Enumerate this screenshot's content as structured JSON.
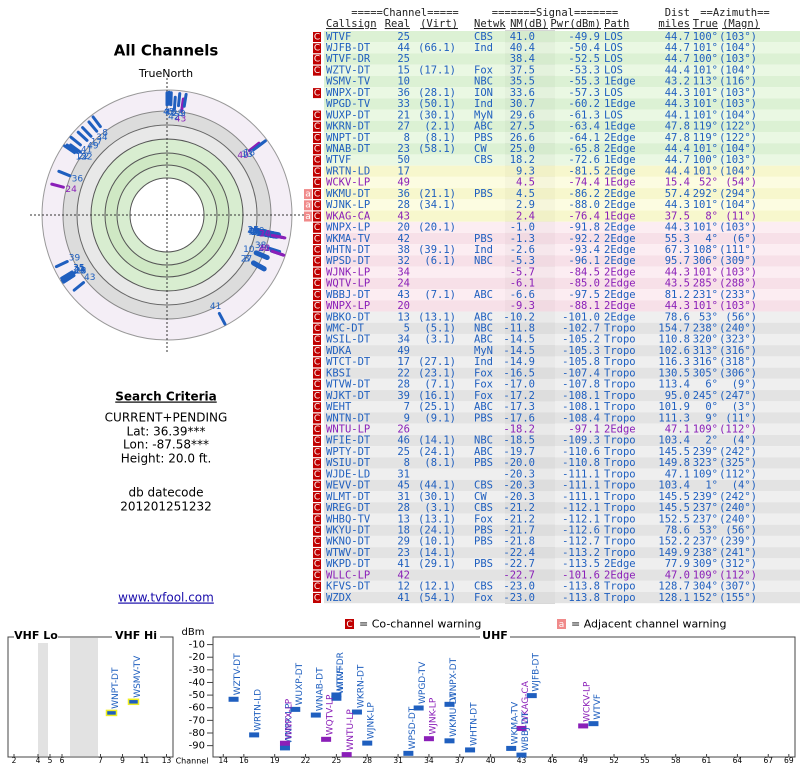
{
  "left": {
    "title": "All Channels",
    "north": "TrueNorth",
    "criteria_title": "Search Criteria",
    "criteria": [
      "CURRENT+PENDING",
      "Lat: 36.39***",
      "Lon: -87.58***",
      "Height: 20.0 ft."
    ],
    "datecode_label": "db datecode",
    "datecode": "201201251232",
    "link": "www.tvfool.com"
  },
  "table": {
    "groups": [
      "=====Channel=====",
      "=======Signal=======",
      "Dist",
      "==Azimuth=="
    ],
    "columns": [
      "Callsign",
      "Real",
      "(Virt)",
      "Netwk",
      "NM(dB)",
      "Pwr(dBm)",
      "Path",
      "miles",
      "True",
      "(Magn)"
    ],
    "rows": [
      {
        "warn": [
          "C"
        ],
        "cells": [
          "WTVF",
          25,
          null,
          "CBS",
          "41.0",
          "-49.9",
          "LOS",
          "44.7",
          "100°",
          "(103°)"
        ],
        "color": "#1f5fbf"
      },
      {
        "warn": [
          "C"
        ],
        "cells": [
          "WJFB-DT",
          44,
          "(66.1)",
          "Ind",
          "40.4",
          "-50.4",
          "LOS",
          "44.7",
          "101°",
          "(104°)"
        ],
        "color": "#1f5fbf"
      },
      {
        "warn": [
          "C"
        ],
        "cells": [
          "WTVF-DR",
          25,
          null,
          null,
          "38.4",
          "-52.5",
          "LOS",
          "44.7",
          "100°",
          "(103°)"
        ],
        "color": "#1f5fbf"
      },
      {
        "warn": [
          "C"
        ],
        "cells": [
          "WZTV-DT",
          15,
          "(17.1)",
          "Fox",
          "37.5",
          "-53.3",
          "LOS",
          "44.4",
          "101°",
          "(104°)"
        ],
        "color": "#1f5fbf"
      },
      {
        "warn": [],
        "cells": [
          "WSMV-TV",
          10,
          null,
          "NBC",
          "35.5",
          "-55.3",
          "1Edge",
          "43.2",
          "113°",
          "(116°)"
        ],
        "color": "#1f5fbf"
      },
      {
        "warn": [
          "C"
        ],
        "cells": [
          "WNPX-DT",
          36,
          "(28.1)",
          "ION",
          "33.6",
          "-57.3",
          "LOS",
          "44.3",
          "101°",
          "(103°)"
        ],
        "color": "#1f5fbf"
      },
      {
        "warn": [],
        "cells": [
          "WPGD-TV",
          33,
          "(50.1)",
          "Ind",
          "30.7",
          "-60.2",
          "1Edge",
          "44.3",
          "101°",
          "(103°)"
        ],
        "color": "#1f5fbf"
      },
      {
        "warn": [
          "C"
        ],
        "cells": [
          "WUXP-DT",
          21,
          "(30.1)",
          "MyN",
          "29.6",
          "-61.3",
          "LOS",
          "44.1",
          "101°",
          "(104°)"
        ],
        "color": "#1f5fbf"
      },
      {
        "warn": [
          "C"
        ],
        "cells": [
          "WKRN-DT",
          27,
          "(2.1)",
          "ABC",
          "27.5",
          "-63.4",
          "1Edge",
          "47.8",
          "119°",
          "(122°)"
        ],
        "color": "#1f5fbf"
      },
      {
        "warn": [
          "C"
        ],
        "cells": [
          "WNPT-DT",
          8,
          "(8.1)",
          "PBS",
          "26.6",
          "-64.1",
          "2Edge",
          "47.8",
          "119°",
          "(122°)"
        ],
        "color": "#1f5fbf"
      },
      {
        "warn": [
          "C"
        ],
        "cells": [
          "WNAB-DT",
          23,
          "(58.1)",
          "CW",
          "25.0",
          "-65.8",
          "2Edge",
          "44.4",
          "101°",
          "(104°)"
        ],
        "color": "#1f5fbf"
      },
      {
        "warn": [
          "C"
        ],
        "cells": [
          "WTVF",
          50,
          null,
          "CBS",
          "18.2",
          "-72.6",
          "1Edge",
          "44.7",
          "100°",
          "(103°)"
        ],
        "color": "#1f5fbf"
      },
      {
        "warn": [
          "C"
        ],
        "cells": [
          "WRTN-LD",
          17,
          null,
          null,
          "9.3",
          "-81.5",
          "2Edge",
          "44.4",
          "101°",
          "(104°)"
        ],
        "color": "#1f5fbf"
      },
      {
        "warn": [
          "C"
        ],
        "cells": [
          "WCKV-LP",
          49,
          null,
          null,
          "4.5",
          "-74.4",
          "1Edge",
          "15.4",
          "52°",
          "(54°)"
        ],
        "color": "#8a1fb8"
      },
      {
        "warn": [
          "a",
          "C"
        ],
        "cells": [
          "WKMU-DT",
          36,
          "(21.1)",
          "PBS",
          "4.5",
          "-86.2",
          "2Edge",
          "57.4",
          "292°",
          "(294°)"
        ],
        "color": "#1f5fbf"
      },
      {
        "warn": [
          "a",
          "C"
        ],
        "cells": [
          "WJNK-LP",
          28,
          "(34.1)",
          null,
          "2.9",
          "-88.0",
          "2Edge",
          "44.3",
          "101°",
          "(104°)"
        ],
        "color": "#1f5fbf"
      },
      {
        "warn": [
          "a",
          "C"
        ],
        "cells": [
          "WKAG-CA",
          43,
          null,
          null,
          "2.4",
          "-76.4",
          "1Edge",
          "37.5",
          "8°",
          "(11°)"
        ],
        "color": "#8a1fb8"
      },
      {
        "warn": [
          "C"
        ],
        "cells": [
          "WNPX-LP",
          20,
          "(20.1)",
          null,
          "-1.0",
          "-91.8",
          "2Edge",
          "44.3",
          "101°",
          "(103°)"
        ],
        "color": "#1f5fbf"
      },
      {
        "warn": [
          "C"
        ],
        "cells": [
          "WKMA-TV",
          42,
          null,
          "PBS",
          "-1.3",
          "-92.2",
          "2Edge",
          "55.3",
          "4°",
          "(6°)"
        ],
        "color": "#1f5fbf"
      },
      {
        "warn": [
          "C"
        ],
        "cells": [
          "WHTN-DT",
          38,
          "(39.1)",
          "Ind",
          "-2.6",
          "-93.4",
          "2Edge",
          "67.3",
          "108°",
          "(111°)"
        ],
        "color": "#1f5fbf"
      },
      {
        "warn": [
          "C"
        ],
        "cells": [
          "WPSD-DT",
          32,
          "(6.1)",
          "NBC",
          "-5.3",
          "-96.1",
          "2Edge",
          "95.7",
          "306°",
          "(309°)"
        ],
        "color": "#1f5fbf"
      },
      {
        "warn": [
          "C"
        ],
        "cells": [
          "WJNK-LP",
          34,
          null,
          null,
          "-5.7",
          "-84.5",
          "2Edge",
          "44.3",
          "101°",
          "(103°)"
        ],
        "color": "#8a1fb8"
      },
      {
        "warn": [
          "C"
        ],
        "cells": [
          "WQTV-LP",
          24,
          null,
          null,
          "-6.1",
          "-85.0",
          "2Edge",
          "43.5",
          "285°",
          "(288°)"
        ],
        "color": "#8a1fb8"
      },
      {
        "warn": [
          "C"
        ],
        "cells": [
          "WBBJ-DT",
          43,
          "(7.1)",
          "ABC",
          "-6.6",
          "-97.5",
          "2Edge",
          "81.2",
          "231°",
          "(233°)"
        ],
        "color": "#1f5fbf"
      },
      {
        "warn": [
          "C"
        ],
        "cells": [
          "WNPX-LP",
          20,
          null,
          null,
          "-9.3",
          "-88.1",
          "2Edge",
          "44.3",
          "101°",
          "(103°)"
        ],
        "color": "#8a1fb8"
      },
      {
        "warn": [
          "C"
        ],
        "cells": [
          "WBKO-DT",
          13,
          "(13.1)",
          "ABC",
          "-10.2",
          "-101.0",
          "2Edge",
          "78.6",
          "53°",
          "(56°)"
        ],
        "color": "#1f5fbf"
      },
      {
        "warn": [
          "C"
        ],
        "cells": [
          "WMC-DT",
          5,
          "(5.1)",
          "NBC",
          "-11.8",
          "-102.7",
          "Tropo",
          "154.7",
          "238°",
          "(240°)"
        ],
        "color": "#1f5fbf"
      },
      {
        "warn": [
          "C"
        ],
        "cells": [
          "WSIL-DT",
          34,
          "(3.1)",
          "ABC",
          "-14.5",
          "-105.2",
          "Tropo",
          "110.8",
          "320°",
          "(323°)"
        ],
        "color": "#1f5fbf"
      },
      {
        "warn": [
          "C"
        ],
        "cells": [
          "WDKA",
          49,
          null,
          "MyN",
          "-14.5",
          "-105.3",
          "Tropo",
          "102.6",
          "313°",
          "(316°)"
        ],
        "color": "#1f5fbf"
      },
      {
        "warn": [
          "C"
        ],
        "cells": [
          "WTCT-DT",
          17,
          "(27.1)",
          "Ind",
          "-14.9",
          "-105.8",
          "Tropo",
          "116.3",
          "316°",
          "(318°)"
        ],
        "color": "#1f5fbf"
      },
      {
        "warn": [
          "C"
        ],
        "cells": [
          "KBSI",
          22,
          "(23.1)",
          "Fox",
          "-16.5",
          "-107.4",
          "Tropo",
          "130.5",
          "305°",
          "(306°)"
        ],
        "color": "#1f5fbf"
      },
      {
        "warn": [
          "C"
        ],
        "cells": [
          "WTVW-DT",
          28,
          "(7.1)",
          "Fox",
          "-17.0",
          "-107.8",
          "Tropo",
          "113.4",
          "6°",
          "(9°)"
        ],
        "color": "#1f5fbf"
      },
      {
        "warn": [
          "C"
        ],
        "cells": [
          "WJKT-DT",
          39,
          "(16.1)",
          "Fox",
          "-17.2",
          "-108.1",
          "Tropo",
          "95.0",
          "245°",
          "(247°)"
        ],
        "color": "#1f5fbf"
      },
      {
        "warn": [
          "C"
        ],
        "cells": [
          "WEHT",
          7,
          "(25.1)",
          "ABC",
          "-17.3",
          "-108.1",
          "Tropo",
          "101.9",
          "0°",
          "(3°)"
        ],
        "color": "#1f5fbf"
      },
      {
        "warn": [
          "C"
        ],
        "cells": [
          "WNTN-DT",
          9,
          "(9.1)",
          "PBS",
          "-17.6",
          "-108.4",
          "Tropo",
          "111.3",
          "9°",
          "(11°)"
        ],
        "color": "#1f5fbf"
      },
      {
        "warn": [
          "C"
        ],
        "cells": [
          "WNTU-LP",
          26,
          null,
          null,
          "-18.2",
          "-97.1",
          "2Edge",
          "47.1",
          "109°",
          "(112°)"
        ],
        "color": "#8a1fb8"
      },
      {
        "warn": [
          "C"
        ],
        "cells": [
          "WFIE-DT",
          46,
          "(14.1)",
          "NBC",
          "-18.5",
          "-109.3",
          "Tropo",
          "103.4",
          "2°",
          "(4°)"
        ],
        "color": "#1f5fbf"
      },
      {
        "warn": [
          "C"
        ],
        "cells": [
          "WPTY-DT",
          25,
          "(24.1)",
          "ABC",
          "-19.7",
          "-110.6",
          "Tropo",
          "145.5",
          "239°",
          "(242°)"
        ],
        "color": "#1f5fbf"
      },
      {
        "warn": [
          "C"
        ],
        "cells": [
          "WSIU-DT",
          8,
          "(8.1)",
          "PBS",
          "-20.0",
          "-110.8",
          "Tropo",
          "149.8",
          "323°",
          "(325°)"
        ],
        "color": "#1f5fbf"
      },
      {
        "warn": [
          "C"
        ],
        "cells": [
          "WJDE-LD",
          31,
          null,
          null,
          "-20.3",
          "-111.1",
          "Tropo",
          "47.1",
          "109°",
          "(112°)"
        ],
        "color": "#1f5fbf"
      },
      {
        "warn": [
          "C"
        ],
        "cells": [
          "WEVV-DT",
          45,
          "(44.1)",
          "CBS",
          "-20.3",
          "-111.1",
          "Tropo",
          "103.4",
          "1°",
          "(4°)"
        ],
        "color": "#1f5fbf"
      },
      {
        "warn": [
          "C"
        ],
        "cells": [
          "WLMT-DT",
          31,
          "(30.1)",
          "CW",
          "-20.3",
          "-111.1",
          "Tropo",
          "145.5",
          "239°",
          "(242°)"
        ],
        "color": "#1f5fbf"
      },
      {
        "warn": [
          "C"
        ],
        "cells": [
          "WREG-DT",
          28,
          "(3.1)",
          "CBS",
          "-21.2",
          "-112.1",
          "Tropo",
          "145.5",
          "237°",
          "(240°)"
        ],
        "color": "#1f5fbf"
      },
      {
        "warn": [
          "C"
        ],
        "cells": [
          "WHBQ-TV",
          13,
          "(13.1)",
          "Fox",
          "-21.2",
          "-112.1",
          "Tropo",
          "152.5",
          "237°",
          "(240°)"
        ],
        "color": "#1f5fbf"
      },
      {
        "warn": [
          "C"
        ],
        "cells": [
          "WKYU-DT",
          18,
          "(24.1)",
          "PBS",
          "-21.7",
          "-112.6",
          "Tropo",
          "78.6",
          "53°",
          "(56°)"
        ],
        "color": "#1f5fbf"
      },
      {
        "warn": [
          "C"
        ],
        "cells": [
          "WKNO-DT",
          29,
          "(10.1)",
          "PBS",
          "-21.8",
          "-112.7",
          "Tropo",
          "152.2",
          "237°",
          "(239°)"
        ],
        "color": "#1f5fbf"
      },
      {
        "warn": [
          "C"
        ],
        "cells": [
          "WTWV-DT",
          23,
          "(14.1)",
          null,
          "-22.4",
          "-113.2",
          "Tropo",
          "149.9",
          "238°",
          "(241°)"
        ],
        "color": "#1f5fbf"
      },
      {
        "warn": [
          "C"
        ],
        "cells": [
          "WKPD-DT",
          41,
          "(29.1)",
          "PBS",
          "-22.7",
          "-113.5",
          "2Edge",
          "77.9",
          "309°",
          "(312°)"
        ],
        "color": "#1f5fbf"
      },
      {
        "warn": [
          "C"
        ],
        "cells": [
          "WLLC-LP",
          42,
          null,
          null,
          "-22.7",
          "-101.6",
          "2Edge",
          "47.0",
          "109°",
          "(112°)"
        ],
        "color": "#8a1fb8"
      },
      {
        "warn": [
          "C"
        ],
        "cells": [
          "KFVS-DT",
          12,
          "(12.1)",
          "CBS",
          "-23.0",
          "-113.8",
          "Tropo",
          "128.7",
          "304°",
          "(307°)"
        ],
        "color": "#1f5fbf"
      },
      {
        "warn": [
          "C"
        ],
        "cells": [
          "WZDX",
          41,
          "(54.1)",
          "Fox",
          "-23.0",
          "-113.8",
          "Tropo",
          "128.1",
          "152°",
          "(155°)"
        ],
        "color": "#1f5fbf"
      }
    ]
  },
  "legend": [
    {
      "icon": "C",
      "text": "= Co-channel warning"
    },
    {
      "icon": "a",
      "text": "= Adjacent channel warning"
    }
  ],
  "spectrum": {
    "y_label": "dBm",
    "x_label": "Channel",
    "ylim": [
      -99,
      -4
    ],
    "yticks": [
      -10,
      -20,
      -30,
      -40,
      -50,
      -60,
      -70,
      -80,
      -90
    ],
    "panels": [
      {
        "label": "VHF Lo",
        "xlim": [
          1.5,
          6.5
        ],
        "xticks": [
          2,
          4,
          5,
          6
        ]
      },
      {
        "label": "VHF Hi",
        "xlim": [
          6.5,
          13.5
        ],
        "xticks": [
          7,
          9,
          11,
          13
        ]
      },
      {
        "label": "UHF",
        "xlim": [
          13,
          69.6
        ],
        "xticks": [
          14,
          16,
          19,
          22,
          25,
          28,
          31,
          34,
          37,
          40,
          43,
          46,
          49,
          52,
          55,
          58,
          61,
          64,
          67,
          69
        ]
      }
    ]
  }
}
